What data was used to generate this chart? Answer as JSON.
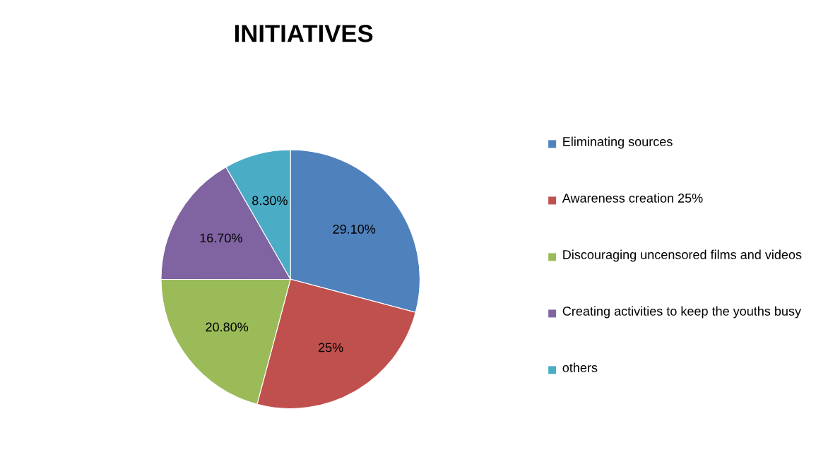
{
  "chart_data": {
    "type": "pie",
    "title": "INITIATIVES",
    "categories": [
      "Eliminating sources",
      "Awareness creation 25%",
      "Discouraging uncensored films and videos",
      "Creating activities to keep the youths busy",
      "others"
    ],
    "values": [
      29.1,
      25,
      20.8,
      16.7,
      8.3
    ],
    "colors": [
      "#4f81bd",
      "#c0504d",
      "#9bbb59",
      "#8064a2",
      "#4bacc6"
    ],
    "value_labels": [
      "29.10%",
      "25%",
      "20.80%",
      "16.70%",
      "8.30%"
    ],
    "legend": "right"
  }
}
